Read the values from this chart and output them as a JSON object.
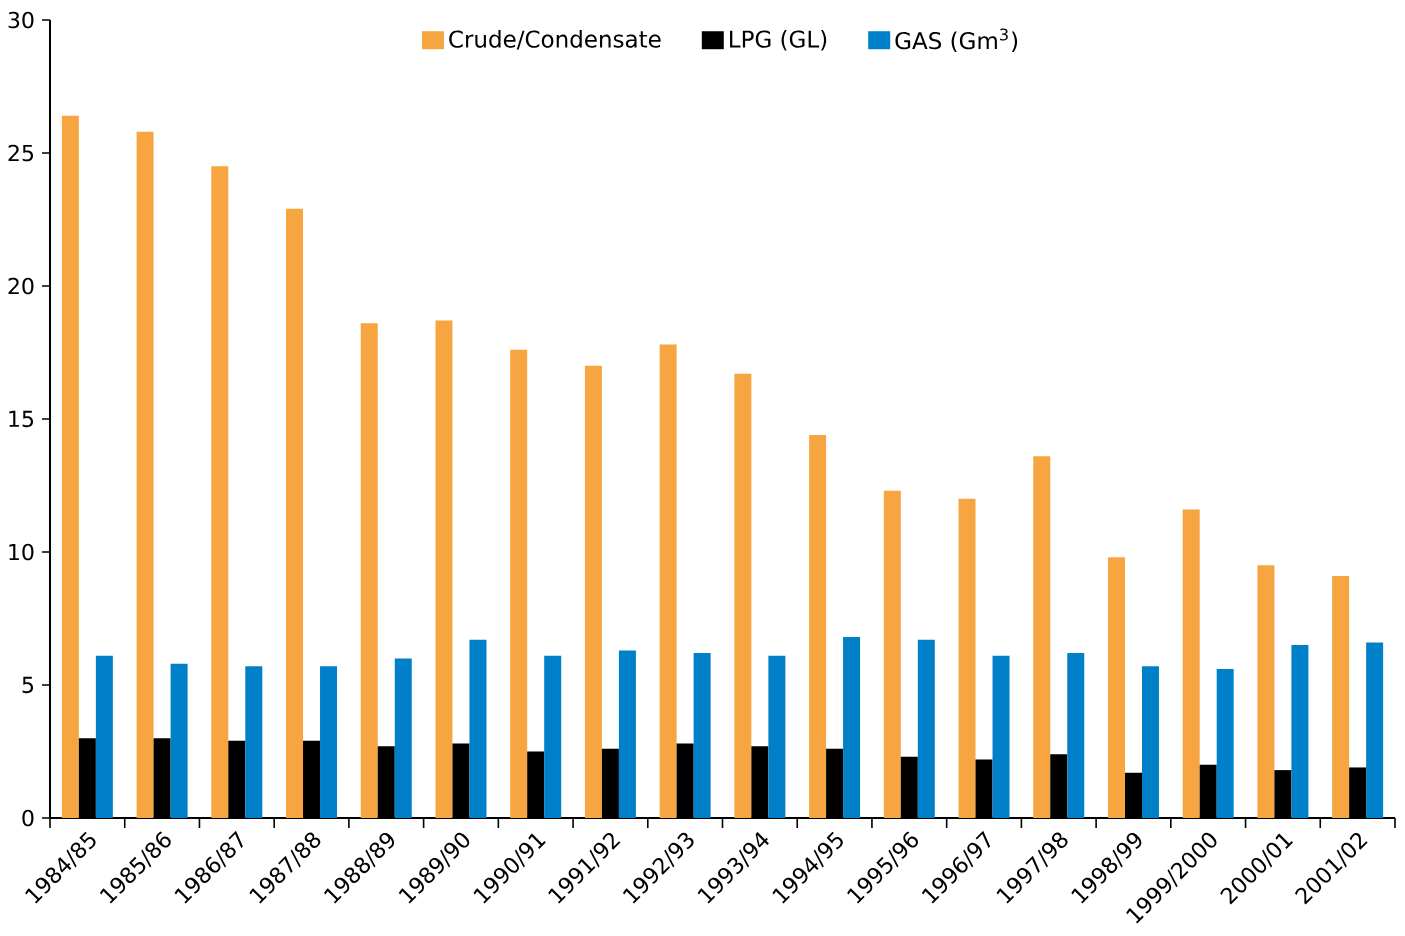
{
  "chart_data": {
    "type": "bar",
    "categories": [
      "1984/85",
      "1985/86",
      "1986/87",
      "1987/88",
      "1988/89",
      "1989/90",
      "1990/91",
      "1991/92",
      "1992/93",
      "1993/94",
      "1994/95",
      "1995/96",
      "1996/97",
      "1997/98",
      "1998/99",
      "1999/2000",
      "2000/01",
      "2001/02"
    ],
    "series": [
      {
        "name": "Crude/Condensate",
        "color": "#f7a540",
        "values": [
          26.4,
          25.8,
          24.5,
          22.9,
          18.6,
          18.7,
          17.6,
          17.0,
          17.8,
          16.7,
          14.4,
          12.3,
          12.0,
          13.6,
          9.8,
          11.6,
          9.5,
          9.1
        ]
      },
      {
        "name": "LPG (GL)",
        "color": "#000000",
        "values": [
          3.0,
          3.0,
          2.9,
          2.9,
          2.7,
          2.8,
          2.5,
          2.6,
          2.8,
          2.7,
          2.6,
          2.3,
          2.2,
          2.4,
          1.7,
          2.0,
          1.8,
          1.9
        ]
      },
      {
        "name": "GAS (Gm$^{3}$)",
        "color": "#0080c8",
        "values": [
          6.1,
          5.8,
          5.7,
          5.7,
          6.0,
          6.7,
          6.1,
          6.3,
          6.2,
          6.1,
          6.8,
          6.7,
          6.1,
          6.2,
          5.7,
          5.6,
          6.5,
          6.6
        ]
      }
    ],
    "ylim": [
      0,
      30
    ],
    "yticks": [
      0,
      5,
      10,
      15,
      20,
      25,
      30
    ],
    "legend": "top",
    "grid": false
  }
}
